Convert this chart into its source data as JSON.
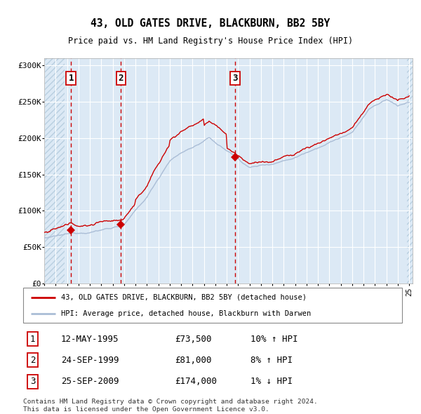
{
  "title": "43, OLD GATES DRIVE, BLACKBURN, BB2 5BY",
  "subtitle": "Price paid vs. HM Land Registry's House Price Index (HPI)",
  "x_start_year": 1993,
  "x_end_year": 2025,
  "y_min": 0,
  "y_max": 310000,
  "y_ticks": [
    0,
    50000,
    100000,
    150000,
    200000,
    250000,
    300000
  ],
  "y_tick_labels": [
    "£0",
    "£50K",
    "£100K",
    "£150K",
    "£200K",
    "£250K",
    "£300K"
  ],
  "hpi_color": "#aabdd6",
  "price_color": "#cc0000",
  "sale_marker_color": "#cc0000",
  "bg_color": "#dce9f5",
  "hatch_color": "#b8cfe0",
  "grid_color": "#ffffff",
  "dashed_line_color": "#cc0000",
  "sale1_year": 1995.36,
  "sale1_price": 73500,
  "sale2_year": 1999.73,
  "sale2_price": 81000,
  "sale3_year": 2009.73,
  "sale3_price": 174000,
  "legend_line1": "43, OLD GATES DRIVE, BLACKBURN, BB2 5BY (detached house)",
  "legend_line2": "HPI: Average price, detached house, Blackburn with Darwen",
  "table_row1": [
    "1",
    "12-MAY-1995",
    "£73,500",
    "10% ↑ HPI"
  ],
  "table_row2": [
    "2",
    "24-SEP-1999",
    "£81,000",
    "8% ↑ HPI"
  ],
  "table_row3": [
    "3",
    "25-SEP-2009",
    "£174,000",
    "1% ↓ HPI"
  ],
  "footer_line1": "Contains HM Land Registry data © Crown copyright and database right 2024.",
  "footer_line2": "This data is licensed under the Open Government Licence v3.0."
}
